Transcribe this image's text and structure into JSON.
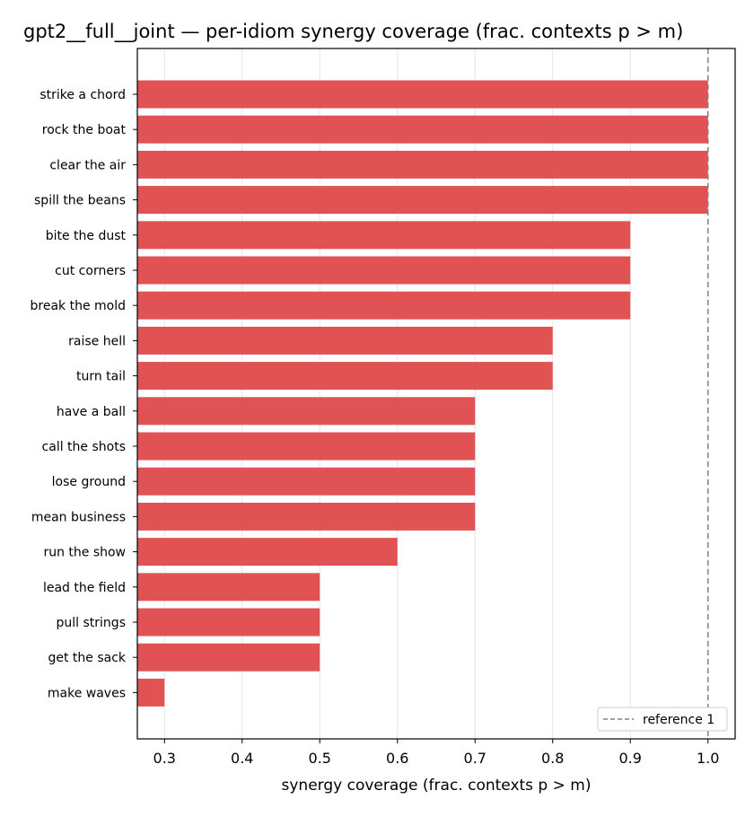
{
  "chart_data": {
    "type": "bar",
    "orientation": "horizontal",
    "title": "gpt2__full__joint — per-idiom synergy coverage  (frac. contexts p > m)",
    "xlabel": "synergy coverage  (frac. contexts p > m)",
    "ylabel": "",
    "categories": [
      "strike a chord",
      "rock the boat",
      "clear the air",
      "spill the beans",
      "bite the dust",
      "cut corners",
      "break the mold",
      "raise hell",
      "turn tail",
      "have a ball",
      "call the shots",
      "lose ground",
      "mean business",
      "run the show",
      "lead the field",
      "pull strings",
      "get the sack",
      "make waves"
    ],
    "values": [
      1.0,
      1.0,
      1.0,
      1.0,
      0.9,
      0.9,
      0.9,
      0.8,
      0.8,
      0.7,
      0.7,
      0.7,
      0.7,
      0.6,
      0.5,
      0.5,
      0.5,
      0.3
    ],
    "xlim": [
      0.265,
      1.035
    ],
    "xticks": [
      "0.3",
      "0.4",
      "0.5",
      "0.6",
      "0.7",
      "0.8",
      "0.9",
      "1.0"
    ],
    "grid": "vertical",
    "bar_color": "#e05254",
    "reference_line": {
      "value": 1.0,
      "label": "reference 1",
      "color": "#808080",
      "style": "dashed"
    },
    "legend_position": "lower-right"
  }
}
